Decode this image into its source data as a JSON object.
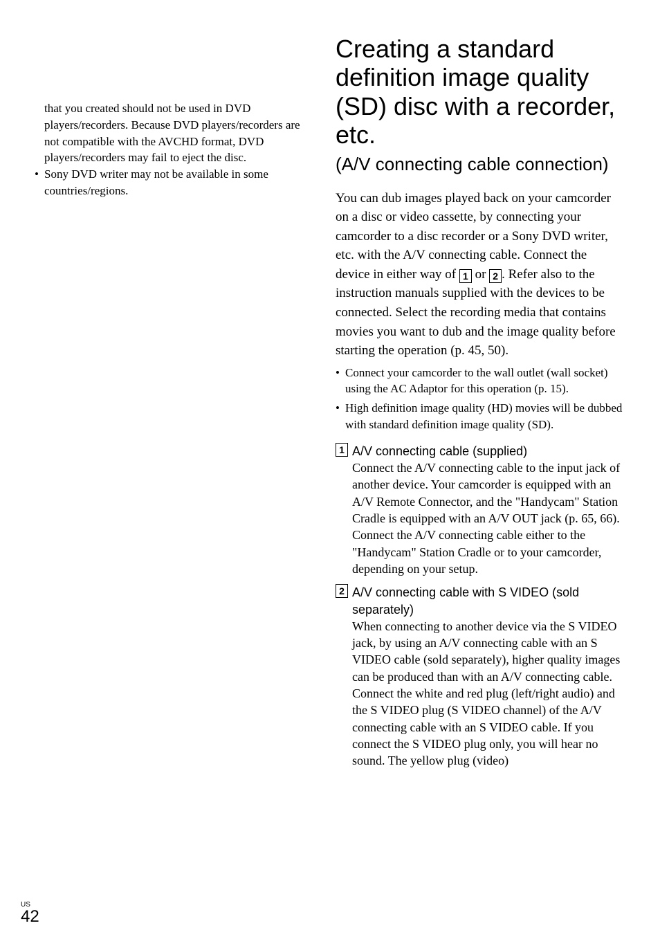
{
  "left": {
    "continuation": "that you created should not be used in DVD players/recorders. Because DVD players/recorders are not compatible with the AVCHD format, DVD players/recorders may fail to eject the disc.",
    "bullet2": "Sony DVD writer may not be available in some countries/regions."
  },
  "right": {
    "title": "Creating a standard definition image quality (SD) disc with a recorder, etc.",
    "subtitle": "(A/V connecting cable connection)",
    "intro_a": "You can dub images played back on your camcorder on a disc or video cassette, by connecting your camcorder to a disc recorder or a Sony DVD writer, etc. with the A/V connecting cable. Connect the device in either way of ",
    "intro_b": " or ",
    "intro_c": ". Refer also to the instruction manuals supplied with the devices to be connected. Select the recording media that contains movies you want to dub and the image quality before starting the operation (p. 45, 50).",
    "box1": "1",
    "box2": "2",
    "sub_bullets": [
      "Connect your camcorder to the wall outlet (wall socket) using the AC Adaptor for this operation (p. 15).",
      "High definition image quality (HD) movies will be dubbed with standard definition image quality (SD)."
    ],
    "items": [
      {
        "num": "1",
        "heading": "A/V connecting cable (supplied)",
        "body": "Connect the A/V connecting cable to the input jack of another device.\nYour camcorder is equipped with an A/V Remote Connector, and the \"Handycam\" Station Cradle is equipped with an A/V OUT jack (p. 65, 66). Connect the A/V connecting cable either to the \"Handycam\" Station Cradle or to your camcorder, depending on your setup."
      },
      {
        "num": "2",
        "heading": "A/V connecting cable with S VIDEO (sold separately)",
        "body": "When connecting to another device via the S VIDEO jack, by using an A/V connecting cable with an S VIDEO cable (sold separately), higher quality images can be produced than with an A/V connecting cable. Connect the white and red plug (left/right audio) and the S VIDEO plug (S VIDEO channel) of the A/V connecting cable with an S VIDEO cable. If you connect the S VIDEO plug only, you will hear no sound. The yellow plug (video)"
      }
    ]
  },
  "footer": {
    "region": "US",
    "page": "42"
  }
}
